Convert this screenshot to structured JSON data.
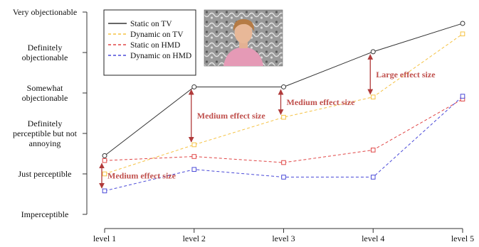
{
  "chart_data": {
    "type": "line",
    "categories": [
      "level 1",
      "level 2",
      "level 3",
      "level 4",
      "level 5"
    ],
    "y_tick_labels": [
      [
        "Imperceptible"
      ],
      [
        "Just perceptible"
      ],
      [
        "Definitely",
        "perceptible but not",
        "annoying"
      ],
      [
        "Somewhat",
        "objectionable"
      ],
      [
        "Definitely",
        "objectionable"
      ],
      [
        "Very objectionable"
      ]
    ],
    "ylim": [
      1,
      6
    ],
    "grid": false,
    "legend_position": "top-left",
    "series": [
      {
        "name": "Static on TV",
        "color": "#333333",
        "dash": "solid",
        "marker": "circle",
        "values": [
          2.45,
          4.15,
          4.15,
          5.02,
          5.72
        ]
      },
      {
        "name": "Dynamic on TV",
        "color": "#f5c242",
        "dash": "dashed",
        "marker": "square",
        "values": [
          2.0,
          2.72,
          3.4,
          3.9,
          5.46
        ]
      },
      {
        "name": "Static on HMD",
        "color": "#e04545",
        "dash": "dashed",
        "marker": "square",
        "values": [
          2.33,
          2.43,
          2.28,
          2.59,
          3.85
        ]
      },
      {
        "name": "Dynamic on HMD",
        "color": "#4a4ad8",
        "dash": "dashed",
        "marker": "square",
        "values": [
          1.58,
          2.11,
          1.92,
          1.92,
          3.92
        ]
      }
    ],
    "annotations": [
      {
        "text": "Medium effect size",
        "category": "level 1",
        "y_from": 1.58,
        "y_to": 2.33
      },
      {
        "text": "Medium effect size",
        "category": "level 2",
        "y_from": 2.72,
        "y_to": 4.15
      },
      {
        "text": "Medium effect size",
        "category": "level 3",
        "y_from": 3.4,
        "y_to": 4.15
      },
      {
        "text": "Large effect size",
        "category": "level 4",
        "y_from": 3.9,
        "y_to": 5.02
      }
    ]
  }
}
